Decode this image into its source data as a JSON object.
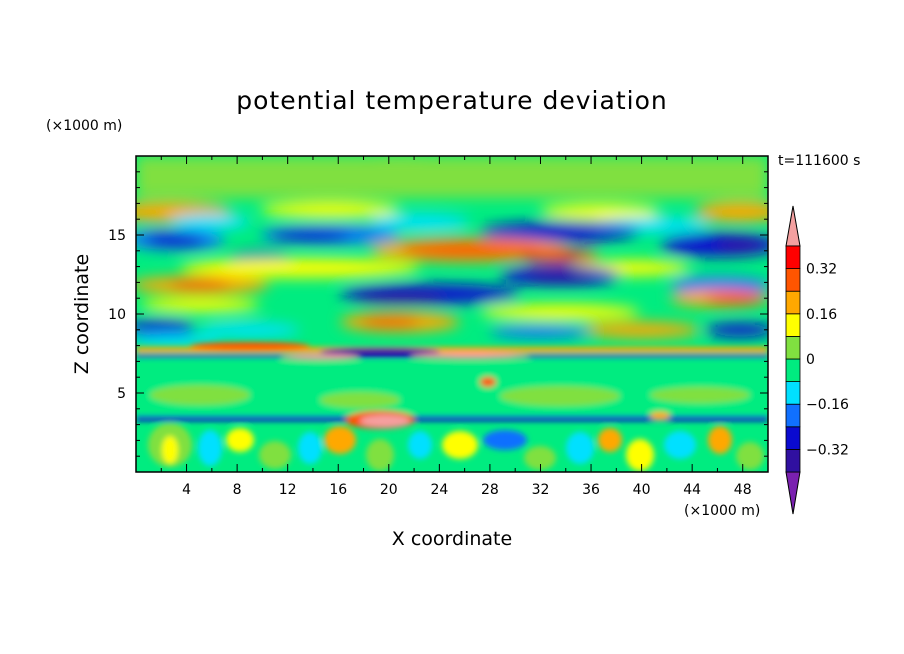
{
  "chart_data": {
    "type": "heatmap",
    "title": "potential temperature deviation",
    "xlabel": "X coordinate",
    "ylabel": "Z coordinate",
    "x_unit": "(×1000 m)",
    "y_unit": "(×1000 m)",
    "time_label": "t=111600 s",
    "xlim": [
      0,
      50
    ],
    "ylim": [
      0,
      20
    ],
    "x_ticks": [
      4,
      8,
      12,
      16,
      20,
      24,
      28,
      32,
      36,
      40,
      44,
      48
    ],
    "y_ticks": [
      5,
      10,
      15
    ],
    "colorbar": {
      "levels": [
        -0.4,
        -0.32,
        -0.24,
        -0.16,
        -0.08,
        0,
        0.08,
        0.16,
        0.24,
        0.32,
        0.4
      ],
      "tick_labels": [
        "0.32",
        "0.16",
        "0",
        "−0.16",
        "−0.32"
      ],
      "tick_values": [
        0.32,
        0.16,
        0,
        -0.16,
        -0.32
      ],
      "colors": [
        "#7a20b0",
        "#3010a0",
        "#0a0ad0",
        "#1070ff",
        "#00e0ff",
        "#00ec80",
        "#80e040",
        "#ffff00",
        "#ffa800",
        "#ff5500",
        "#ff0000",
        "#f4a0a0"
      ]
    }
  }
}
